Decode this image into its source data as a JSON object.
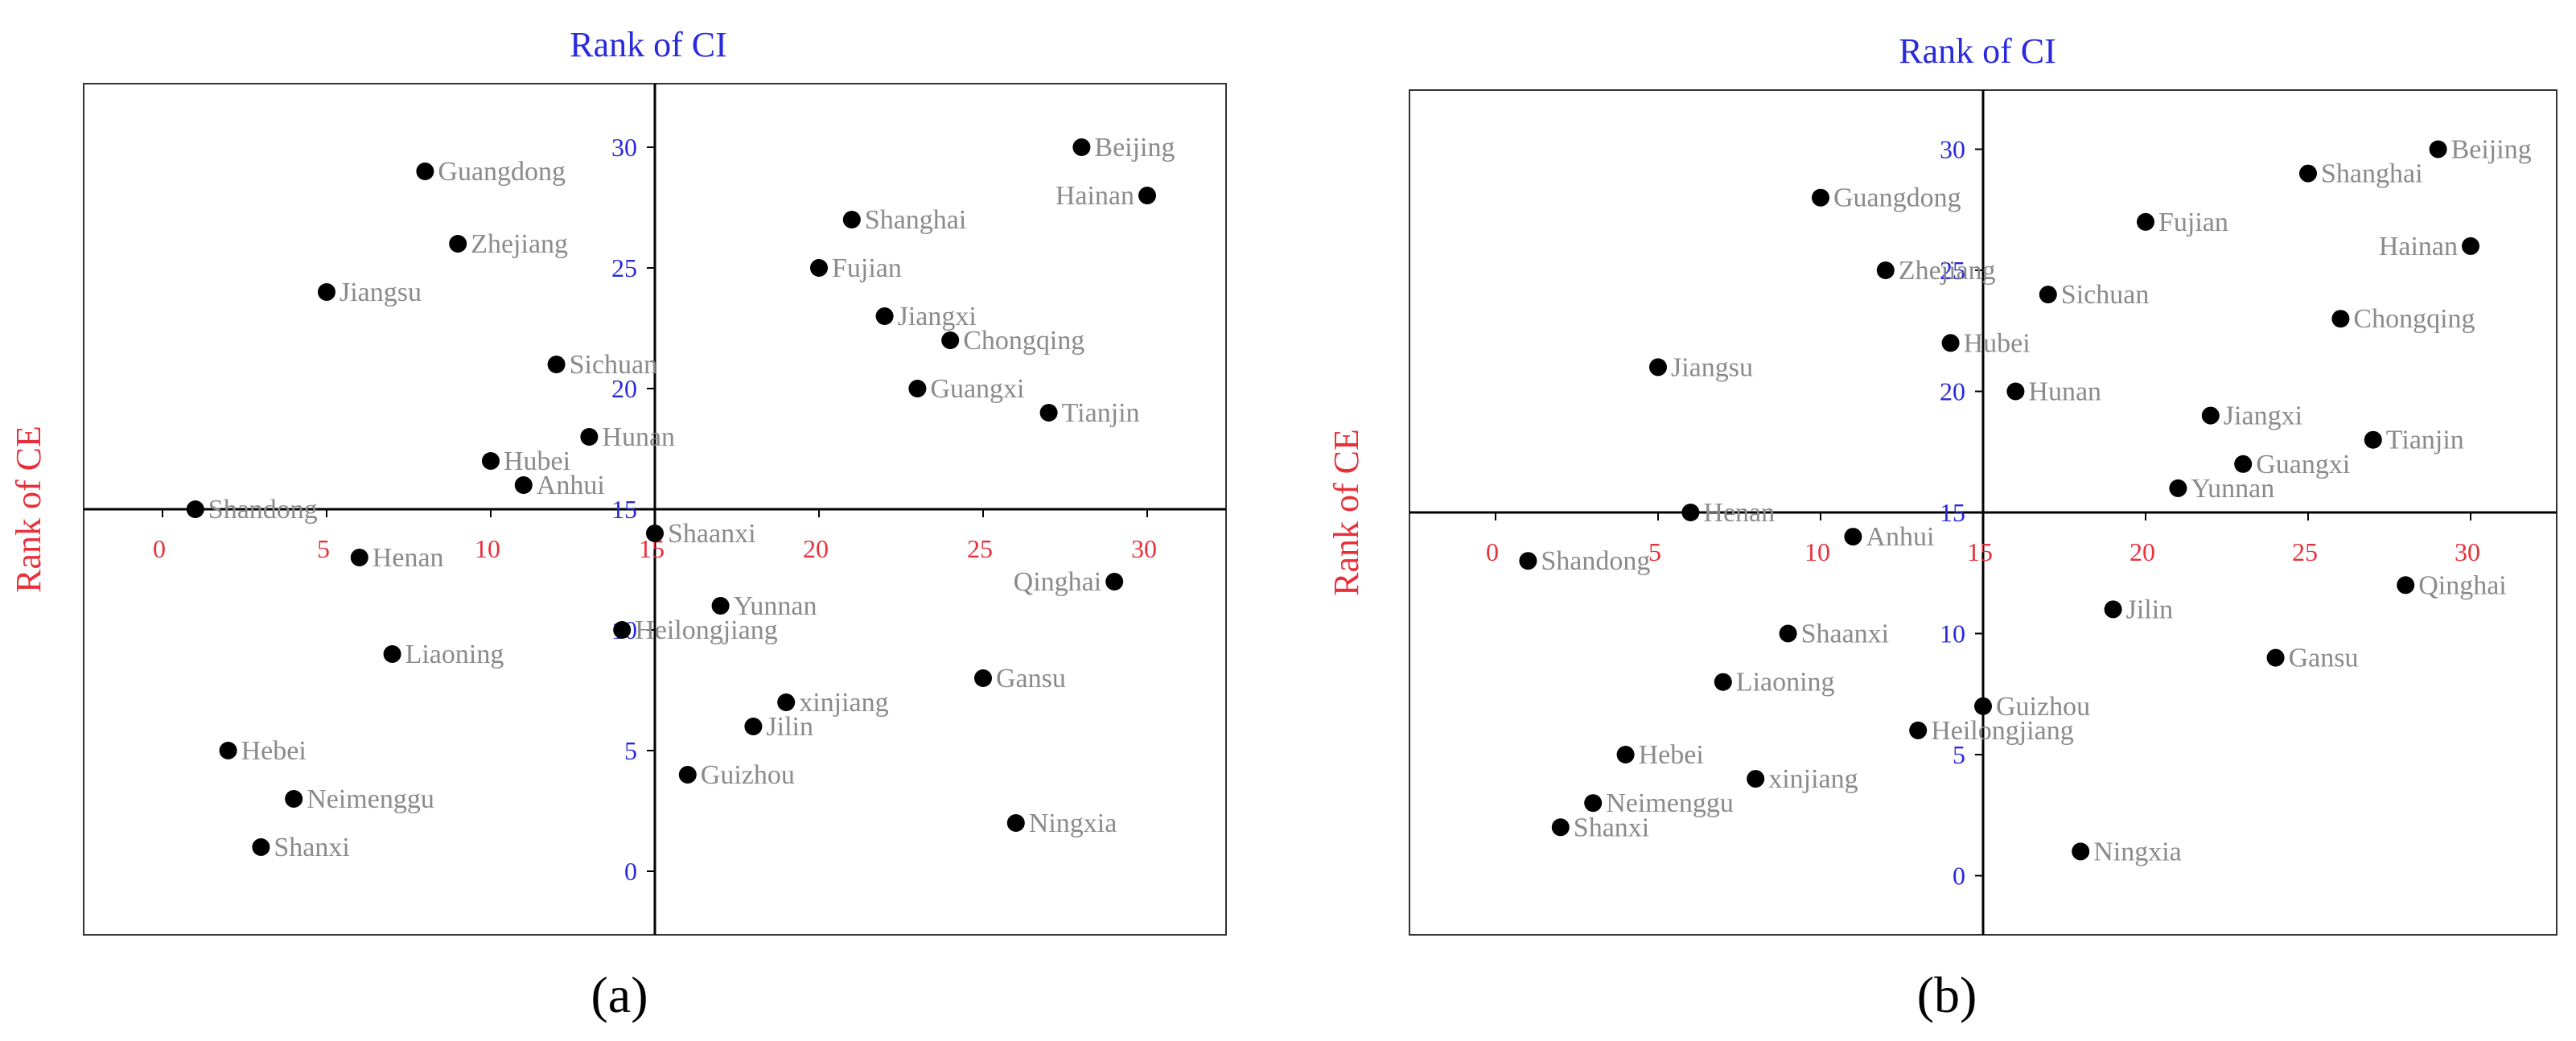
{
  "colors": {
    "x_axis_text": "#e8303a",
    "y_axis_text": "#2a2adc",
    "point": "#000000",
    "point_label": "#8a8a8a",
    "frame": "#333333"
  },
  "chart_data": [
    {
      "type": "scatter",
      "panel_label": "(a)",
      "x_title": "Rank of CI",
      "y_title": "Rank of CE",
      "x_ticks": [
        "0",
        "5",
        "10",
        "15",
        "20",
        "25",
        "30"
      ],
      "y_ticks": [
        "0",
        "5",
        "10",
        "15",
        "20",
        "25",
        "30"
      ],
      "xlim": [
        -2.5,
        32.5
      ],
      "ylim": [
        -2.5,
        32.5
      ],
      "axes_cross": [
        15,
        15
      ],
      "grid": false,
      "points": [
        {
          "name": "Beijing",
          "x": 28,
          "y": 30,
          "label_side": "right"
        },
        {
          "name": "Hainan",
          "x": 30,
          "y": 28,
          "label_side": "left"
        },
        {
          "name": "Guangdong",
          "x": 8,
          "y": 29,
          "label_side": "right"
        },
        {
          "name": "Shanghai",
          "x": 21,
          "y": 27,
          "label_side": "right"
        },
        {
          "name": "Zhejiang",
          "x": 9,
          "y": 26,
          "label_side": "right"
        },
        {
          "name": "Fujian",
          "x": 20,
          "y": 25,
          "label_side": "right"
        },
        {
          "name": "Jiangsu",
          "x": 5,
          "y": 24,
          "label_side": "right"
        },
        {
          "name": "Jiangxi",
          "x": 22,
          "y": 23,
          "label_side": "right"
        },
        {
          "name": "Chongqing",
          "x": 24,
          "y": 22,
          "label_side": "right"
        },
        {
          "name": "Sichuan",
          "x": 12,
          "y": 21,
          "label_side": "right"
        },
        {
          "name": "Guangxi",
          "x": 23,
          "y": 20,
          "label_side": "right"
        },
        {
          "name": "Tianjin",
          "x": 27,
          "y": 19,
          "label_side": "right"
        },
        {
          "name": "Hunan",
          "x": 13,
          "y": 18,
          "label_side": "right"
        },
        {
          "name": "Hubei",
          "x": 10,
          "y": 17,
          "label_side": "right"
        },
        {
          "name": "Anhui",
          "x": 11,
          "y": 16,
          "label_side": "right"
        },
        {
          "name": "Shandong",
          "x": 1,
          "y": 15,
          "label_side": "right"
        },
        {
          "name": "Shaanxi",
          "x": 15,
          "y": 14,
          "label_side": "right"
        },
        {
          "name": "Henan",
          "x": 6,
          "y": 13,
          "label_side": "right"
        },
        {
          "name": "Qinghai",
          "x": 29,
          "y": 12,
          "label_side": "left"
        },
        {
          "name": "Yunnan",
          "x": 17,
          "y": 11,
          "label_side": "right"
        },
        {
          "name": "Heilongjiang",
          "x": 14,
          "y": 10,
          "label_side": "right"
        },
        {
          "name": "Liaoning",
          "x": 7,
          "y": 9,
          "label_side": "right"
        },
        {
          "name": "Gansu",
          "x": 25,
          "y": 8,
          "label_side": "right"
        },
        {
          "name": "xinjiang",
          "x": 19,
          "y": 7,
          "label_side": "right"
        },
        {
          "name": "Jilin",
          "x": 18,
          "y": 6,
          "label_side": "right"
        },
        {
          "name": "Hebei",
          "x": 2,
          "y": 5,
          "label_side": "right"
        },
        {
          "name": "Guizhou",
          "x": 16,
          "y": 4,
          "label_side": "right"
        },
        {
          "name": "Neimenggu",
          "x": 4,
          "y": 3,
          "label_side": "right"
        },
        {
          "name": "Ningxia",
          "x": 26,
          "y": 2,
          "label_side": "right"
        },
        {
          "name": "Shanxi",
          "x": 3,
          "y": 1,
          "label_side": "right"
        }
      ]
    },
    {
      "type": "scatter",
      "panel_label": "(b)",
      "x_title": "Rank of CI",
      "y_title": "Rank of CE",
      "x_ticks": [
        "0",
        "5",
        "10",
        "15",
        "20",
        "25",
        "30"
      ],
      "y_ticks": [
        "0",
        "5",
        "10",
        "15",
        "20",
        "25",
        "30"
      ],
      "xlim": [
        -2.5,
        32.5
      ],
      "ylim": [
        -2.5,
        32.5
      ],
      "axes_cross": [
        15,
        15
      ],
      "grid": false,
      "points": [
        {
          "name": "Beijing",
          "x": 29,
          "y": 30,
          "label_side": "right"
        },
        {
          "name": "Shanghai",
          "x": 25,
          "y": 29,
          "label_side": "right"
        },
        {
          "name": "Guangdong",
          "x": 10,
          "y": 28,
          "label_side": "right"
        },
        {
          "name": "Fujian",
          "x": 20,
          "y": 27,
          "label_side": "right"
        },
        {
          "name": "Hainan",
          "x": 30,
          "y": 26,
          "label_side": "left"
        },
        {
          "name": "Zhejiang",
          "x": 12,
          "y": 25,
          "label_side": "right"
        },
        {
          "name": "Sichuan",
          "x": 17,
          "y": 24,
          "label_side": "right"
        },
        {
          "name": "Chongqing",
          "x": 26,
          "y": 23,
          "label_side": "right"
        },
        {
          "name": "Hubei",
          "x": 14,
          "y": 22,
          "label_side": "right"
        },
        {
          "name": "Jiangsu",
          "x": 5,
          "y": 21,
          "label_side": "right"
        },
        {
          "name": "Hunan",
          "x": 16,
          "y": 20,
          "label_side": "right"
        },
        {
          "name": "Jiangxi",
          "x": 22,
          "y": 19,
          "label_side": "right"
        },
        {
          "name": "Tianjin",
          "x": 27,
          "y": 18,
          "label_side": "right"
        },
        {
          "name": "Guangxi",
          "x": 23,
          "y": 17,
          "label_side": "right"
        },
        {
          "name": "Yunnan",
          "x": 21,
          "y": 16,
          "label_side": "right"
        },
        {
          "name": "Henan",
          "x": 6,
          "y": 15,
          "label_side": "right"
        },
        {
          "name": "Anhui",
          "x": 11,
          "y": 14,
          "label_side": "right"
        },
        {
          "name": "Shandong",
          "x": 1,
          "y": 13,
          "label_side": "right"
        },
        {
          "name": "Qinghai",
          "x": 28,
          "y": 12,
          "label_side": "right"
        },
        {
          "name": "Jilin",
          "x": 19,
          "y": 11,
          "label_side": "right"
        },
        {
          "name": "Shaanxi",
          "x": 9,
          "y": 10,
          "label_side": "right"
        },
        {
          "name": "Gansu",
          "x": 24,
          "y": 9,
          "label_side": "right"
        },
        {
          "name": "Liaoning",
          "x": 7,
          "y": 8,
          "label_side": "right"
        },
        {
          "name": "Guizhou",
          "x": 15,
          "y": 7,
          "label_side": "right"
        },
        {
          "name": "Heilongjiang",
          "x": 13,
          "y": 6,
          "label_side": "right"
        },
        {
          "name": "Hebei",
          "x": 4,
          "y": 5,
          "label_side": "right"
        },
        {
          "name": "xinjiang",
          "x": 8,
          "y": 4,
          "label_side": "right"
        },
        {
          "name": "Neimenggu",
          "x": 3,
          "y": 3,
          "label_side": "right"
        },
        {
          "name": "Shanxi",
          "x": 2,
          "y": 2,
          "label_side": "right"
        },
        {
          "name": "Ningxia",
          "x": 18,
          "y": 1,
          "label_side": "right"
        }
      ]
    }
  ]
}
